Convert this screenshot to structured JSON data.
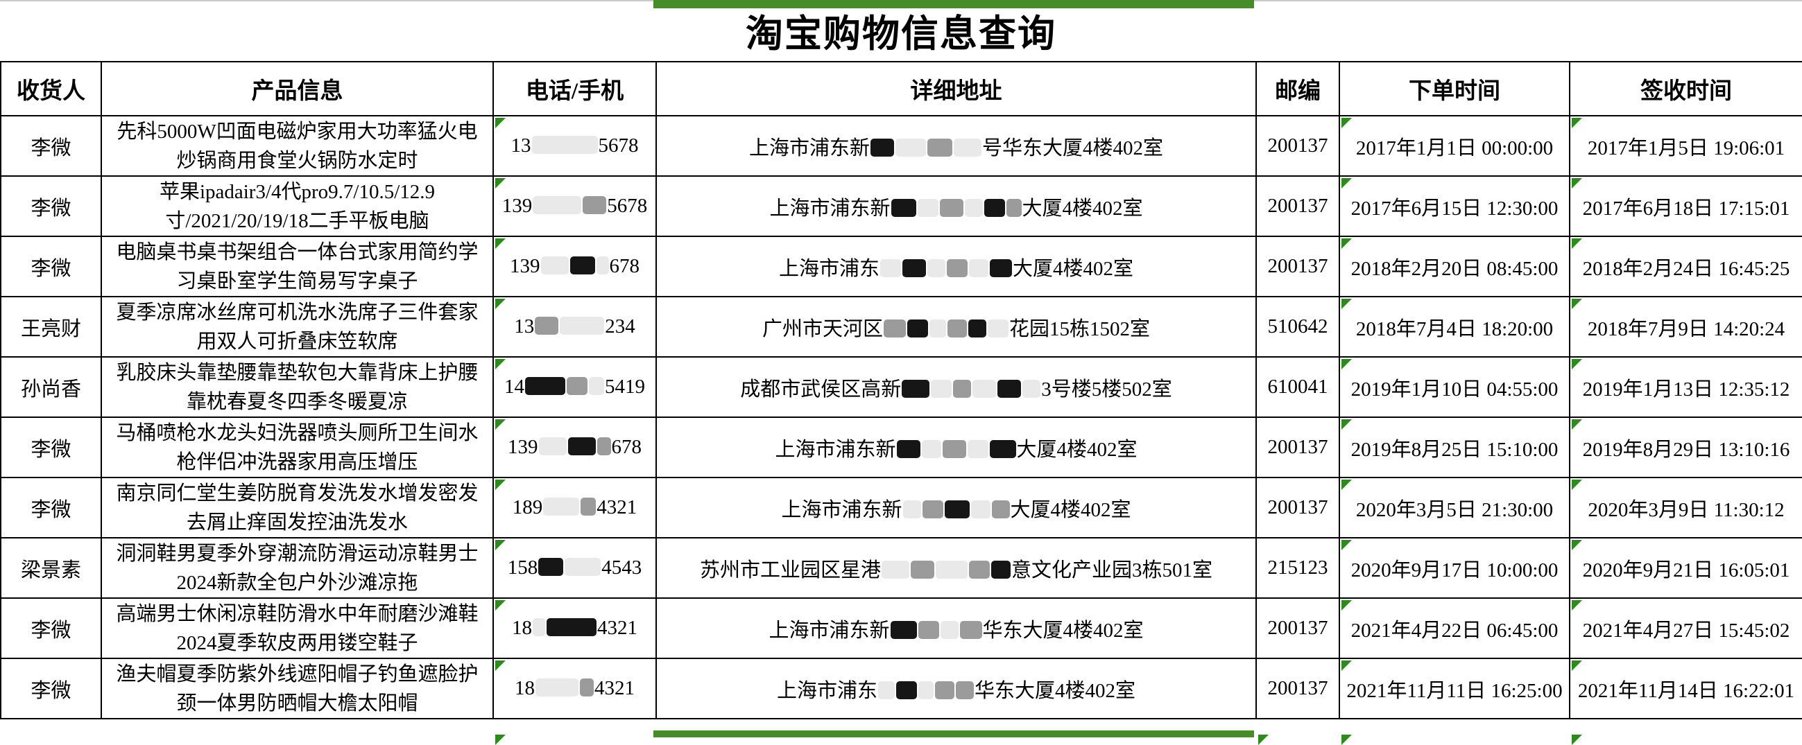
{
  "page": {
    "title": "淘宝购物信息查询"
  },
  "colors": {
    "green_accent_bar": "#468c28",
    "green_corner_triangle": "#2e8a1f",
    "table_border": "#000000"
  },
  "table": {
    "headers": [
      "收货人",
      "产品信息",
      "电话/手机",
      "详细地址",
      "邮编",
      "下单时间",
      "签收时间"
    ],
    "rows": [
      {
        "recipient": "李微",
        "product": "先科5000W凹面电磁炉家用大功率猛火电炒锅商用食堂火锅防水定时",
        "phone": [
          {
            "t": "13"
          },
          {
            "b": "light",
            "w": 95
          },
          {
            "t": "5678"
          }
        ],
        "address": [
          {
            "t": "上海市浦东新"
          },
          {
            "b": "dark",
            "w": 34
          },
          {
            "b": "light",
            "w": 44
          },
          {
            "b": "mid",
            "w": 36
          },
          {
            "b": "light",
            "w": 40
          },
          {
            "t": "号华东大厦4楼402室"
          }
        ],
        "postcode": "200137",
        "order_time": "2017年1月1日 00:00:00",
        "sign_time": "2017年1月5日 19:06:01"
      },
      {
        "recipient": "李微",
        "product": "苹果ipadair3/4代pro9.7/10.5/12.9寸/2021/20/19/18二手平板电脑",
        "phone": [
          {
            "t": "139"
          },
          {
            "b": "light",
            "w": 70
          },
          {
            "b": "mid",
            "w": 34
          },
          {
            "t": "5678"
          }
        ],
        "address": [
          {
            "t": "上海市浦东新"
          },
          {
            "b": "dark",
            "w": 36
          },
          {
            "b": "light",
            "w": 30
          },
          {
            "b": "mid",
            "w": 34
          },
          {
            "b": "light",
            "w": 26
          },
          {
            "b": "dark",
            "w": 30
          },
          {
            "b": "mid",
            "w": 22
          },
          {
            "t": "大厦4楼402室"
          }
        ],
        "postcode": "200137",
        "order_time": "2017年6月15日 12:30:00",
        "sign_time": "2017年6月18日 17:15:01"
      },
      {
        "recipient": "李微",
        "product": "电脑桌书桌书架组合一体台式家用简约学习桌卧室学生简易写字桌子",
        "phone": [
          {
            "t": "139"
          },
          {
            "b": "light",
            "w": 40
          },
          {
            "b": "dark",
            "w": 36
          },
          {
            "b": "light",
            "w": 18
          },
          {
            "t": "678"
          }
        ],
        "address": [
          {
            "t": "上海市浦东"
          },
          {
            "b": "light",
            "w": 30
          },
          {
            "b": "dark",
            "w": 34
          },
          {
            "b": "light",
            "w": 26
          },
          {
            "b": "mid",
            "w": 30
          },
          {
            "b": "light",
            "w": 28
          },
          {
            "b": "dark",
            "w": 32
          },
          {
            "t": "大厦4楼402室"
          }
        ],
        "postcode": "200137",
        "order_time": "2018年2月20日 08:45:00",
        "sign_time": "2018年2月24日 16:45:25"
      },
      {
        "recipient": "王亮财",
        "product": "夏季凉席冰丝席可机洗水洗席子三件套家用双人可折叠床笠软席",
        "phone": [
          {
            "t": "13"
          },
          {
            "b": "mid",
            "w": 34
          },
          {
            "b": "light",
            "w": 64
          },
          {
            "t": "234"
          }
        ],
        "address": [
          {
            "t": "广州市天河区"
          },
          {
            "b": "mid",
            "w": 32
          },
          {
            "b": "dark",
            "w": 30
          },
          {
            "b": "light",
            "w": 24
          },
          {
            "b": "mid",
            "w": 28
          },
          {
            "b": "dark",
            "w": 26
          },
          {
            "b": "light",
            "w": 30
          },
          {
            "t": "花园15栋1502室"
          }
        ],
        "postcode": "510642",
        "order_time": "2018年7月4日 18:20:00",
        "sign_time": "2018年7月9日 14:20:24"
      },
      {
        "recipient": "孙尚香",
        "product": "乳胶床头靠垫腰靠垫软包大靠背床上护腰靠枕春夏冬四季冬暖夏凉",
        "phone": [
          {
            "t": "14"
          },
          {
            "b": "dark",
            "w": 58
          },
          {
            "b": "mid",
            "w": 30
          },
          {
            "b": "light",
            "w": 22
          },
          {
            "t": "5419"
          }
        ],
        "address": [
          {
            "t": "成都市武侯区高新"
          },
          {
            "b": "dark",
            "w": 40
          },
          {
            "b": "light",
            "w": 30
          },
          {
            "b": "mid",
            "w": 26
          },
          {
            "b": "light",
            "w": 34
          },
          {
            "b": "dark",
            "w": 34
          },
          {
            "b": "light",
            "w": 26
          },
          {
            "t": "3号楼5楼502室"
          }
        ],
        "postcode": "610041",
        "order_time": "2019年1月10日 04:55:00",
        "sign_time": "2019年1月13日 12:35:12"
      },
      {
        "recipient": "李微",
        "product": "马桶喷枪水龙头妇洗器喷头厕所卫生间水枪伴侣冲洗器家用高压增压",
        "phone": [
          {
            "t": "139"
          },
          {
            "b": "light",
            "w": 40
          },
          {
            "b": "dark",
            "w": 40
          },
          {
            "b": "mid",
            "w": 20
          },
          {
            "t": "678"
          }
        ],
        "address": [
          {
            "t": "上海市浦东新"
          },
          {
            "b": "dark",
            "w": 34
          },
          {
            "b": "light",
            "w": 28
          },
          {
            "b": "mid",
            "w": 34
          },
          {
            "b": "light",
            "w": 30
          },
          {
            "b": "dark",
            "w": 38
          },
          {
            "t": "大厦4楼402室"
          }
        ],
        "postcode": "200137",
        "order_time": "2019年8月25日 15:10:00",
        "sign_time": "2019年8月29日 13:10:16"
      },
      {
        "recipient": "李微",
        "product": "南京同仁堂生姜防脱育发洗发水增发密发去屑止痒固发控油洗发水",
        "phone": [
          {
            "t": "189"
          },
          {
            "b": "light",
            "w": 52
          },
          {
            "b": "mid",
            "w": 22
          },
          {
            "t": "4321"
          }
        ],
        "address": [
          {
            "t": "上海市浦东新"
          },
          {
            "b": "light",
            "w": 26
          },
          {
            "b": "mid",
            "w": 30
          },
          {
            "b": "dark",
            "w": 36
          },
          {
            "b": "light",
            "w": 28
          },
          {
            "b": "mid",
            "w": 26
          },
          {
            "t": "大厦4楼402室"
          }
        ],
        "postcode": "200137",
        "order_time": "2020年3月5日 21:30:00",
        "sign_time": "2020年3月9日 11:30:12"
      },
      {
        "recipient": "梁景素",
        "product": "洞洞鞋男夏季外穿潮流防滑运动凉鞋男士2024新款全包户外沙滩凉拖",
        "phone": [
          {
            "t": "158"
          },
          {
            "b": "dark",
            "w": 36
          },
          {
            "b": "light",
            "w": 52
          },
          {
            "t": "4543"
          }
        ],
        "address": [
          {
            "t": "苏州市工业园区星港"
          },
          {
            "b": "light",
            "w": 40
          },
          {
            "b": "mid",
            "w": 34
          },
          {
            "b": "light",
            "w": 46
          },
          {
            "b": "mid",
            "w": 30
          },
          {
            "b": "dark",
            "w": 28
          },
          {
            "t": "意文化产业园3栋501室"
          }
        ],
        "postcode": "215123",
        "order_time": "2020年9月17日 10:00:00",
        "sign_time": "2020年9月21日 16:05:01"
      },
      {
        "recipient": "李微",
        "product": "高端男士休闲凉鞋防滑水中年耐磨沙滩鞋2024夏季软皮两用镂空鞋子",
        "phone": [
          {
            "t": "18"
          },
          {
            "b": "light",
            "w": 18
          },
          {
            "b": "dark",
            "w": 72
          },
          {
            "t": "4321"
          }
        ],
        "address": [
          {
            "t": "上海市浦东新"
          },
          {
            "b": "dark",
            "w": 38
          },
          {
            "b": "mid",
            "w": 30
          },
          {
            "b": "light",
            "w": 26
          },
          {
            "b": "mid",
            "w": 32
          },
          {
            "t": "华东大厦4楼402室"
          }
        ],
        "postcode": "200137",
        "order_time": "2021年4月22日 06:45:00",
        "sign_time": "2021年4月27日 15:45:02"
      },
      {
        "recipient": "李微",
        "product": "渔夫帽夏季防紫外线遮阳帽子钓鱼遮脸护颈一体男防晒帽大檐太阳帽",
        "phone": [
          {
            "t": "18"
          },
          {
            "b": "light",
            "w": 62
          },
          {
            "b": "mid",
            "w": 20
          },
          {
            "t": "4321"
          }
        ],
        "address": [
          {
            "t": "上海市浦东"
          },
          {
            "b": "light",
            "w": 24
          },
          {
            "b": "dark",
            "w": 30
          },
          {
            "b": "light",
            "w": 22
          },
          {
            "b": "mid",
            "w": 28
          },
          {
            "b": "mid",
            "w": 26
          },
          {
            "t": "华东大厦4楼402室"
          }
        ],
        "postcode": "200137",
        "order_time": "2021年11月11日 16:25:00",
        "sign_time": "2021年11月14日 16:22:01"
      }
    ]
  }
}
